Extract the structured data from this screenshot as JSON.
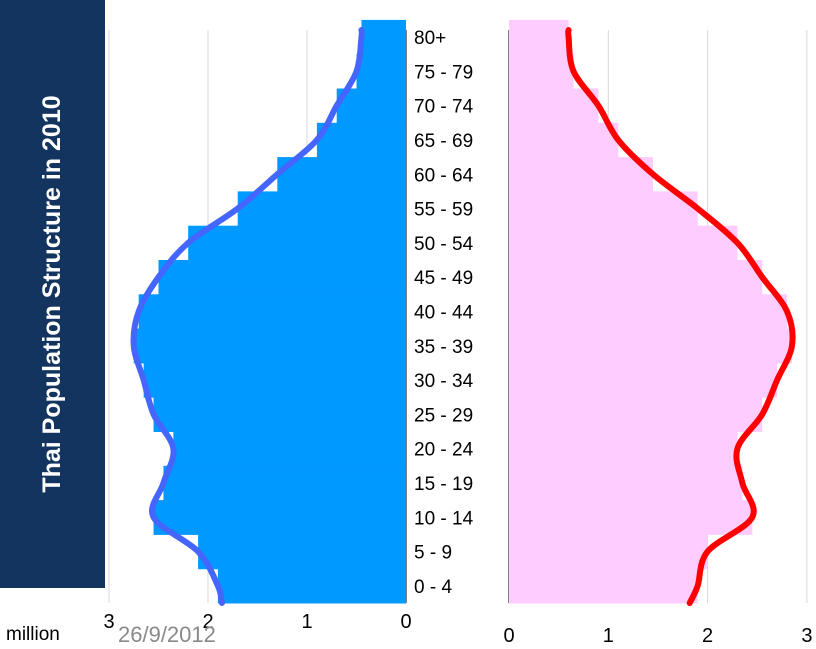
{
  "title": "Thai Population Structure in 2010",
  "unit_label": "million",
  "footer_date": "26/9/2012",
  "colors": {
    "title_bg": "#12345e",
    "male_bar": "#0099ff",
    "male_line": "#4466ff",
    "female_bar": "#ffccff",
    "female_line": "#ff0000",
    "grid": "#d9d9d9"
  },
  "chart_data": {
    "type": "bar",
    "orientation": "horizontal",
    "layout": "population-pyramid",
    "categories": [
      "0 - 4",
      "5 - 9",
      "10 - 14",
      "15 - 19",
      "20 - 24",
      "25 - 29",
      "30 - 34",
      "35 - 39",
      "40 - 44",
      "45 - 49",
      "50 - 54",
      "55 - 59",
      "60 - 64",
      "65 - 69",
      "70 - 74",
      "75 - 79",
      "80+"
    ],
    "series": [
      {
        "side": "left",
        "values": [
          1.9,
          2.1,
          2.55,
          2.45,
          2.35,
          2.55,
          2.65,
          2.75,
          2.7,
          2.5,
          2.2,
          1.7,
          1.3,
          0.9,
          0.7,
          0.5,
          0.45
        ]
      },
      {
        "side": "right",
        "values": [
          1.9,
          2.0,
          2.45,
          2.35,
          2.3,
          2.55,
          2.7,
          2.85,
          2.8,
          2.55,
          2.3,
          1.9,
          1.45,
          1.1,
          0.9,
          0.65,
          0.6
        ]
      }
    ],
    "x_ticks_left": [
      "3",
      "2",
      "1",
      "0"
    ],
    "x_ticks_right": [
      "0",
      "1",
      "2",
      "3"
    ],
    "xlim": [
      0,
      3
    ],
    "grid": true
  }
}
